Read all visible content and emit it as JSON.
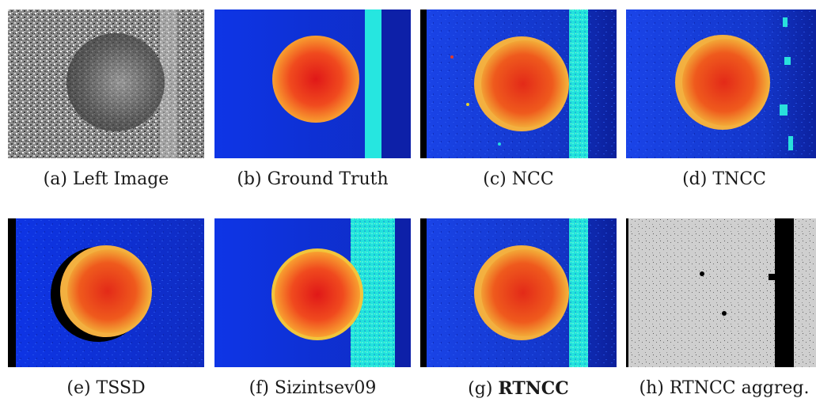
{
  "captions": {
    "a": {
      "prefix": "(a)",
      "name": "Left Image"
    },
    "b": {
      "prefix": "(b)",
      "name": "Ground Truth"
    },
    "c": {
      "prefix": "(c)",
      "name": "NCC"
    },
    "d": {
      "prefix": "(d)",
      "name": "TNCC"
    },
    "e": {
      "prefix": "(e)",
      "name": "TSSD"
    },
    "f": {
      "prefix": "(f)",
      "name": "Sizintsev09"
    },
    "g": {
      "prefix": "(g)",
      "name": "RTNCC"
    },
    "h": {
      "prefix": "(h)",
      "name": "RTNCC aggreg."
    }
  },
  "colors": {
    "background_blue": "#1f3fd6",
    "far_blue": "#0b1fa8",
    "stripe_cyan": "#22e6e0",
    "sphere_center": "#e8231a",
    "sphere_edge": "#f6a52a",
    "aggreg_gray": "#c8c8c8",
    "aggreg_black": "#000000"
  }
}
